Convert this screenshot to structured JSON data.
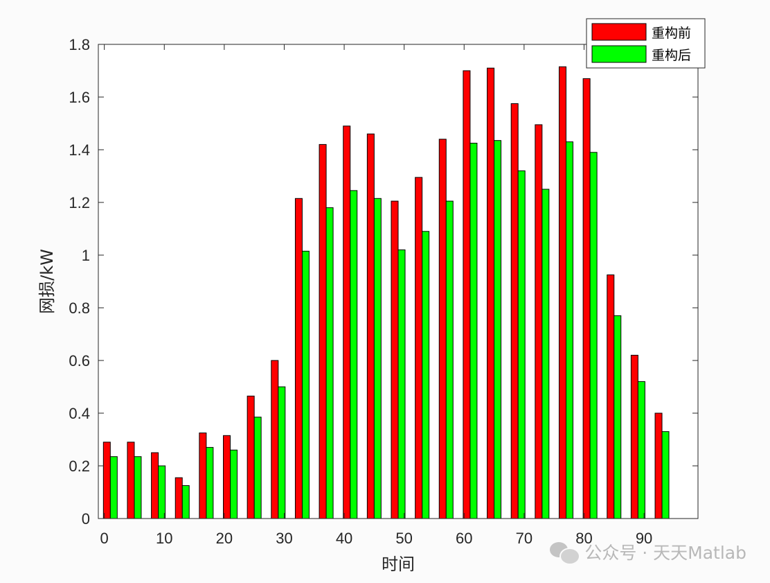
{
  "chart_data": {
    "type": "bar",
    "xlabel": "时间",
    "ylabel": "网损/kW",
    "x": [
      1,
      5,
      9,
      13,
      17,
      21,
      25,
      29,
      33,
      37,
      41,
      45,
      49,
      53,
      57,
      61,
      65,
      69,
      73,
      77,
      81,
      85,
      89,
      93
    ],
    "series": [
      {
        "name": "重构前",
        "color": "#ff0000",
        "values": [
          0.29,
          0.29,
          0.25,
          0.155,
          0.325,
          0.315,
          0.465,
          0.6,
          1.215,
          1.42,
          1.49,
          1.46,
          1.205,
          1.295,
          1.44,
          1.7,
          1.71,
          1.575,
          1.495,
          1.715,
          1.67,
          0.925,
          0.62,
          0.4
        ]
      },
      {
        "name": "重构后",
        "color": "#00ff00",
        "values": [
          0.235,
          0.235,
          0.2,
          0.125,
          0.27,
          0.26,
          0.385,
          0.5,
          1.015,
          1.18,
          1.245,
          1.215,
          1.02,
          1.09,
          1.205,
          1.425,
          1.435,
          1.32,
          1.25,
          1.43,
          1.39,
          0.77,
          0.52,
          0.33
        ]
      }
    ],
    "xlim": [
      -1,
      99
    ],
    "ylim": [
      0,
      1.8
    ],
    "xticks": [
      "0",
      "10",
      "20",
      "30",
      "40",
      "50",
      "60",
      "70",
      "80",
      "90"
    ],
    "yticks": [
      "0",
      "0.2",
      "0.4",
      "0.6",
      "0.8",
      "1",
      "1.2",
      "1.4",
      "1.6",
      "1.8"
    ],
    "legend": "top-right",
    "grid": false
  },
  "watermark": {
    "text": "公众号 · 天天Matlab",
    "icon": "wechat-icon"
  }
}
